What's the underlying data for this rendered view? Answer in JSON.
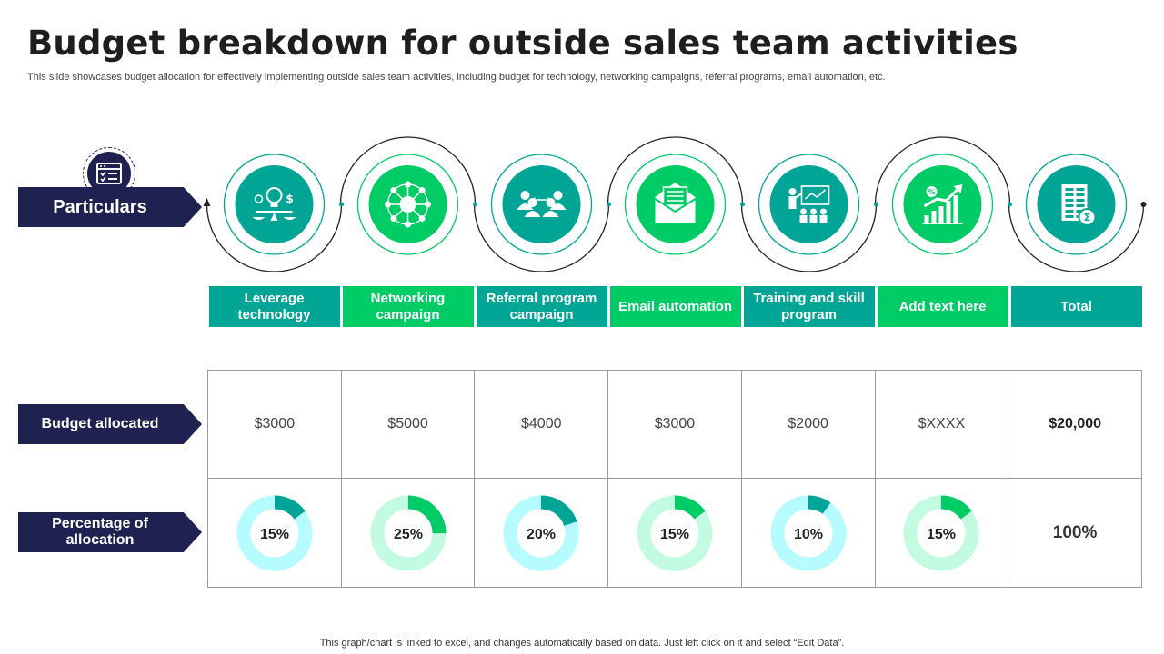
{
  "title": "Budget breakdown for outside sales team activities",
  "subtitle": "This slide showcases budget allocation for effectively implementing outside sales team activities, including budget for technology, networking campaigns, referral programs, email automation, etc.",
  "labels": {
    "particulars": "Particulars",
    "budget": "Budget allocated",
    "percentage": "Percentage of allocation"
  },
  "colors": {
    "teal": "#00a595",
    "green": "#00cc66",
    "navy": "#1f2250",
    "teal_light": "#b6fbff",
    "green_light": "#c2fbe2"
  },
  "items": [
    {
      "name": "Leverage technology",
      "budget": "$3000",
      "percent_label": "15%",
      "percent": 15,
      "color": "teal",
      "icon": "lightbulb-balance-icon"
    },
    {
      "name": "Networking campaign",
      "budget": "$5000",
      "percent_label": "25%",
      "percent": 25,
      "color": "green",
      "icon": "network-icon"
    },
    {
      "name": "Referral program campaign",
      "budget": "$4000",
      "percent_label": "20%",
      "percent": 20,
      "color": "teal",
      "icon": "referral-people-icon"
    },
    {
      "name": "Email automation",
      "budget": "$3000",
      "percent_label": "15%",
      "percent": 15,
      "color": "green",
      "icon": "envelope-icon"
    },
    {
      "name": "Training and skill program",
      "budget": "$2000",
      "percent_label": "10%",
      "percent": 10,
      "color": "teal",
      "icon": "training-presentation-icon"
    },
    {
      "name": "Add text here",
      "budget": "$XXXX",
      "percent_label": "15%",
      "percent": 15,
      "color": "green",
      "icon": "growth-chart-icon"
    }
  ],
  "total": {
    "name": "Total",
    "budget": "$20,000",
    "percent_label": "100%",
    "color": "teal",
    "icon": "financial-report-icon"
  },
  "footnote": "This graph/chart is linked to excel,  and changes automatically based on data. Just left click on it and select “Edit Data”."
}
